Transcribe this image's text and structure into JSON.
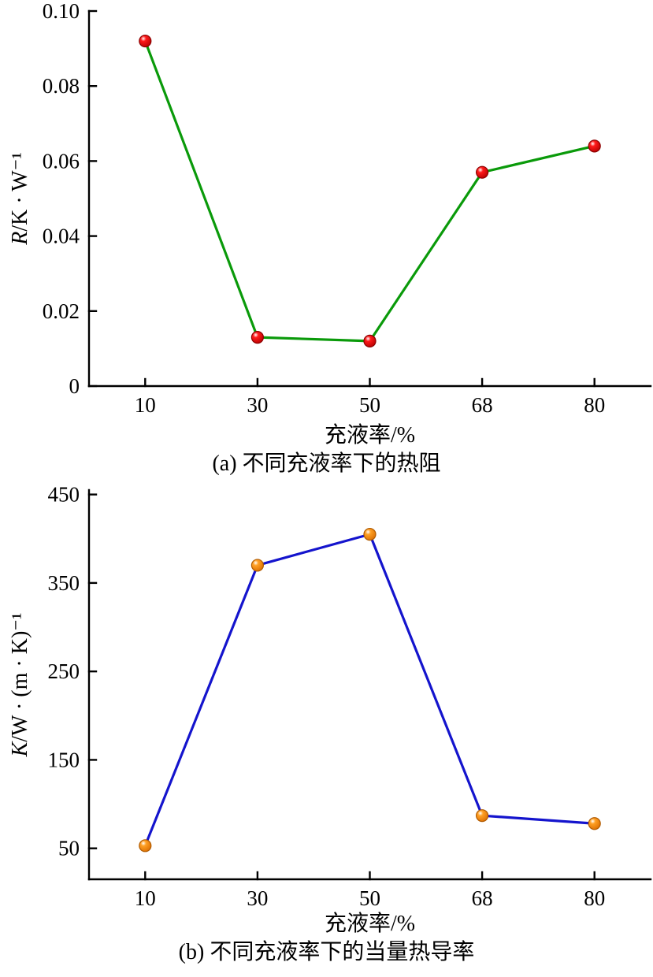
{
  "page": {
    "background": "#ffffff",
    "text_color": "#000000"
  },
  "chart_data": [
    {
      "type": "line",
      "id": "chart-a",
      "categories": [
        "10",
        "30",
        "50",
        "68",
        "80"
      ],
      "values": [
        0.092,
        0.013,
        0.012,
        0.057,
        0.064
      ],
      "xlabel": "充液率/%",
      "ylabel": "R/K · W⁻¹",
      "ylabel_var": "R",
      "ylabel_rest": "/K · W⁻¹",
      "caption": "(a) 不同充液率下的热阻",
      "ylim": [
        0,
        0.1
      ],
      "yticks": [
        0,
        0.02,
        0.04,
        0.06,
        0.08,
        0.1
      ],
      "ytick_labels": [
        "0",
        "0.02",
        "0.04",
        "0.06",
        "0.08",
        "0.10"
      ],
      "grid": false,
      "legend": "none",
      "marker": "circle",
      "axis_color": "#000000",
      "line_color": "#0a9a0a",
      "marker_fill": "#ff1a1a",
      "marker_shade": "#b30000",
      "marker_edge": "#8b0000"
    },
    {
      "type": "line",
      "id": "chart-b",
      "categories": [
        "10",
        "30",
        "50",
        "68",
        "80"
      ],
      "values": [
        53,
        370,
        405,
        87,
        78
      ],
      "xlabel": "充液率/%",
      "ylabel": "K/W · (m · K)⁻¹",
      "ylabel_var": "K",
      "ylabel_rest": "/W · (m · K)⁻¹",
      "caption": "(b) 不同充液率下的当量热导率",
      "ylim": [
        15,
        455
      ],
      "yticks": [
        50,
        150,
        250,
        350,
        450
      ],
      "ytick_labels": [
        "50",
        "150",
        "250",
        "350",
        "450"
      ],
      "grid": false,
      "legend": "none",
      "marker": "circle",
      "axis_color": "#000000",
      "line_color": "#1414cd",
      "marker_fill": "#ffa024",
      "marker_shade": "#d96c00",
      "marker_edge": "#b05a00"
    }
  ]
}
